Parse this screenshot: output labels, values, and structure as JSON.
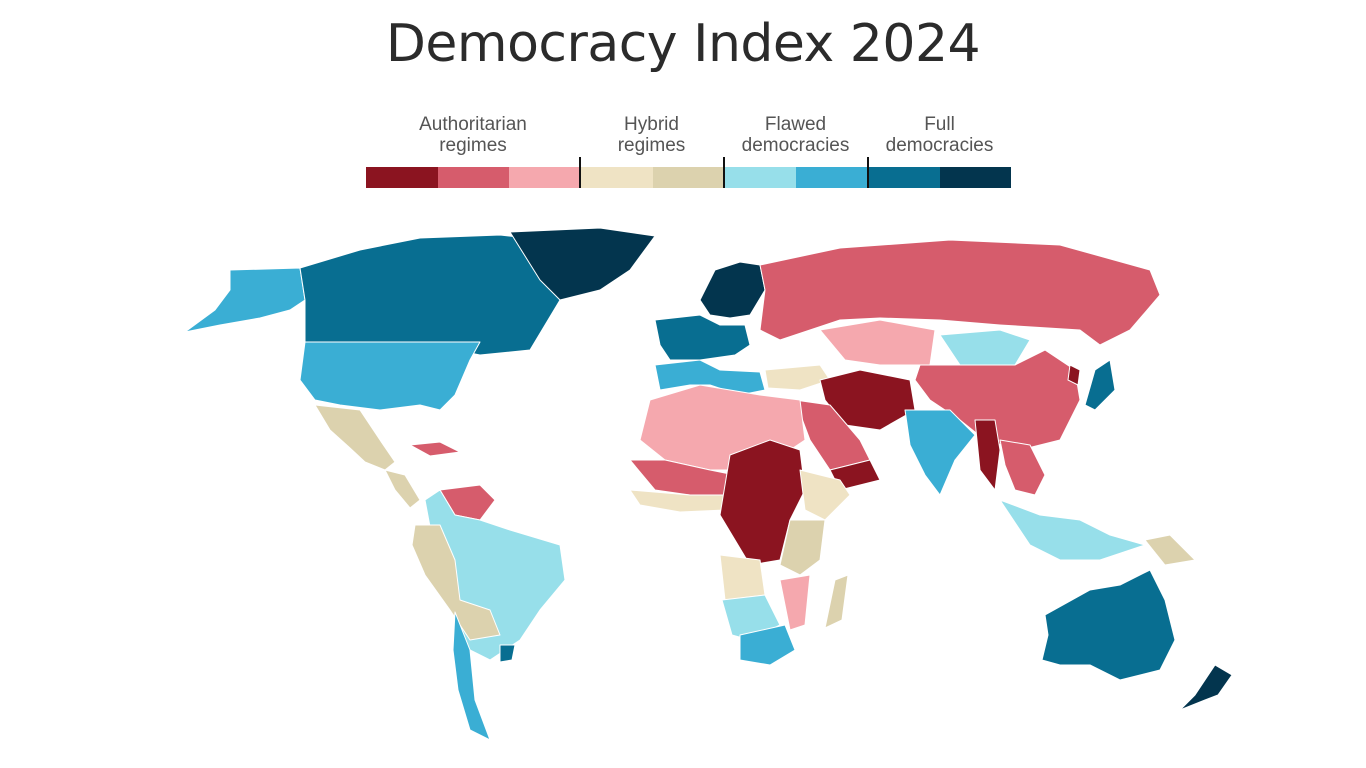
{
  "title": "Democracy Index 2024",
  "legend": {
    "groups": [
      {
        "line1": "Authoritarian",
        "line2": "regimes"
      },
      {
        "line1": "Hybrid",
        "line2": "regimes"
      },
      {
        "line1": "Flawed",
        "line2": "democracies"
      },
      {
        "line1": "Full",
        "line2": "democracies"
      }
    ],
    "colors": [
      "#8b1420",
      "#d65c6c",
      "#f5a8ae",
      "#efe3c4",
      "#dcd2ae",
      "#97dfea",
      "#3aaed4",
      "#086e91",
      "#03354e"
    ]
  },
  "map": {
    "regions": [
      {
        "name": "alaska",
        "color": "#3aaed4"
      },
      {
        "name": "canada",
        "color": "#086e91"
      },
      {
        "name": "greenland",
        "color": "#03354e"
      },
      {
        "name": "usa",
        "color": "#3aaed4"
      },
      {
        "name": "mexico",
        "color": "#dcd2ae"
      },
      {
        "name": "central-america",
        "color": "#dcd2ae"
      },
      {
        "name": "venezuela",
        "color": "#d65c6c"
      },
      {
        "name": "south-america",
        "color": "#97dfea"
      },
      {
        "name": "andes",
        "color": "#dcd2ae"
      },
      {
        "name": "chile",
        "color": "#3aaed4"
      },
      {
        "name": "uruguay",
        "color": "#086e91"
      },
      {
        "name": "western-europe",
        "color": "#086e91"
      },
      {
        "name": "scandinavia",
        "color": "#03354e"
      },
      {
        "name": "southern-europe",
        "color": "#3aaed4"
      },
      {
        "name": "turkey",
        "color": "#efe3c4"
      },
      {
        "name": "russia",
        "color": "#d65c6c"
      },
      {
        "name": "kazakhstan",
        "color": "#f5a8ae"
      },
      {
        "name": "mongolia",
        "color": "#97dfea"
      },
      {
        "name": "china",
        "color": "#d65c6c"
      },
      {
        "name": "iran-afghanistan",
        "color": "#8b1420"
      },
      {
        "name": "arabia",
        "color": "#d65c6c"
      },
      {
        "name": "yemen",
        "color": "#8b1420"
      },
      {
        "name": "india",
        "color": "#3aaed4"
      },
      {
        "name": "myanmar",
        "color": "#8b1420"
      },
      {
        "name": "southeast-asia",
        "color": "#d65c6c"
      },
      {
        "name": "japan",
        "color": "#086e91"
      },
      {
        "name": "korea",
        "color": "#8b1420"
      },
      {
        "name": "indonesia",
        "color": "#97dfea"
      },
      {
        "name": "png",
        "color": "#dcd2ae"
      },
      {
        "name": "australia",
        "color": "#086e91"
      },
      {
        "name": "new-zealand",
        "color": "#03354e"
      },
      {
        "name": "north-africa",
        "color": "#f5a8ae"
      },
      {
        "name": "sahel",
        "color": "#d65c6c"
      },
      {
        "name": "west-africa",
        "color": "#efe3c4"
      },
      {
        "name": "central-africa",
        "color": "#8b1420"
      },
      {
        "name": "horn-of-africa",
        "color": "#efe3c4"
      },
      {
        "name": "east-africa",
        "color": "#dcd2ae"
      },
      {
        "name": "angola",
        "color": "#efe3c4"
      },
      {
        "name": "namibia-botswana",
        "color": "#97dfea"
      },
      {
        "name": "south-africa",
        "color": "#3aaed4"
      },
      {
        "name": "mozambique",
        "color": "#f5a8ae"
      },
      {
        "name": "madagascar",
        "color": "#dcd2ae"
      },
      {
        "name": "cuba",
        "color": "#d65c6c"
      }
    ]
  }
}
